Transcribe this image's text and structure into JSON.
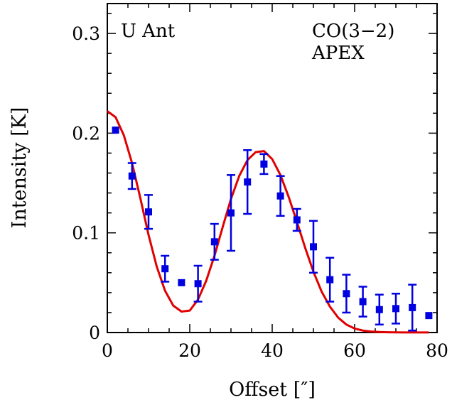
{
  "chart_data": {
    "type": "scatter",
    "xlabel": "Offset [″]",
    "ylabel": "Intensity [K]",
    "xlim": [
      0,
      80
    ],
    "ylim": [
      0,
      0.33
    ],
    "xticks": [
      0,
      20,
      40,
      60,
      80
    ],
    "yticks": [
      0,
      0.1,
      0.2,
      0.3
    ],
    "xtick_labels": [
      "0",
      "20",
      "40",
      "60",
      "80"
    ],
    "ytick_labels": [
      "0",
      "0.1",
      "0.2",
      "0.3"
    ],
    "grid": false,
    "annotations": {
      "source": "U Ant",
      "line": "CO(3−2)",
      "telescope": "APEX"
    },
    "series": [
      {
        "kind": "points_with_errorbars",
        "color": "#0000e0",
        "x": [
          2,
          6,
          10,
          14,
          18,
          22,
          26,
          30,
          34,
          38,
          42,
          46,
          50,
          54,
          58,
          62,
          66,
          70,
          74,
          78
        ],
        "y": [
          0.203,
          0.157,
          0.121,
          0.064,
          0.05,
          0.049,
          0.091,
          0.12,
          0.151,
          0.169,
          0.137,
          0.113,
          0.086,
          0.053,
          0.039,
          0.031,
          0.023,
          0.024,
          0.025,
          0.017
        ],
        "err": [
          0,
          0.013,
          0.017,
          0.013,
          0,
          0.018,
          0.018,
          0.038,
          0.032,
          0.01,
          0.02,
          0.011,
          0.026,
          0.022,
          0.019,
          0.015,
          0.015,
          0.015,
          0.023,
          0
        ]
      },
      {
        "kind": "line",
        "color": "#e00000",
        "x": [
          0,
          2,
          4,
          6,
          8,
          10,
          12,
          14,
          16,
          18,
          20,
          22,
          24,
          26,
          28,
          30,
          32,
          34,
          36,
          38,
          40,
          42,
          44,
          46,
          48,
          50,
          52,
          54,
          56,
          58,
          60,
          62,
          64,
          66,
          68,
          70,
          72,
          74,
          76,
          78
        ],
        "y": [
          0.222,
          0.216,
          0.198,
          0.17,
          0.135,
          0.098,
          0.066,
          0.042,
          0.027,
          0.021,
          0.022,
          0.033,
          0.052,
          0.077,
          0.106,
          0.134,
          0.157,
          0.173,
          0.181,
          0.182,
          0.174,
          0.158,
          0.136,
          0.111,
          0.085,
          0.061,
          0.041,
          0.026,
          0.015,
          0.008,
          0.004,
          0.002,
          0.001,
          0.0005,
          0.0003,
          0.0002,
          0.0001,
          0.0001,
          0.0001,
          0.0001
        ]
      }
    ]
  }
}
